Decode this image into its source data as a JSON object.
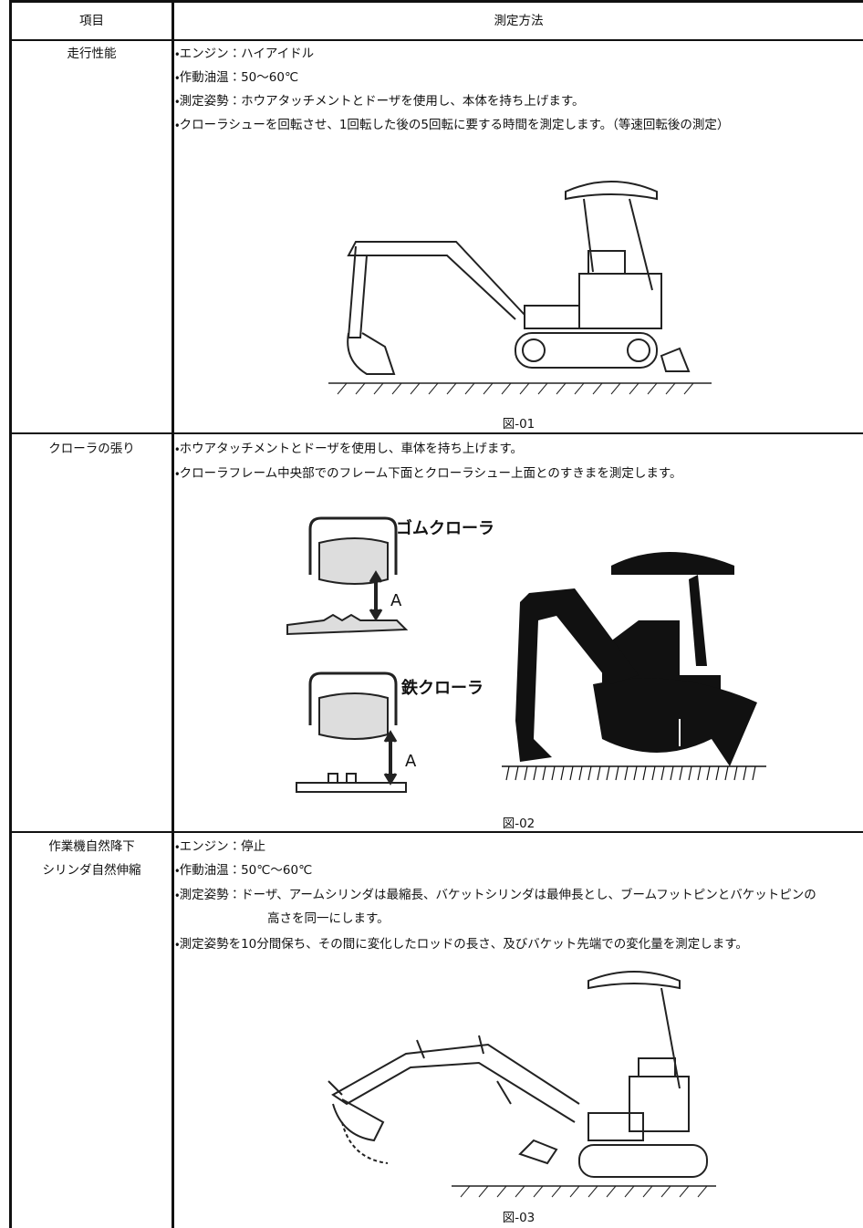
{
  "table": {
    "header": [
      "項目",
      "測定方法"
    ],
    "rows": [
      {
        "item": [
          "走行性能"
        ],
        "lines": [
          "・エンジン：ハイアイドル",
          "・作動油温：50～60℃",
          "・測定姿勢：ホウアタッチメントとドーザを使用し、本体を持ち上げます。",
          "・クローラシューを回転させ、1回転した後の5回転に要する時間を測定します。（等速回転後の測定）"
        ],
        "caption": "図-01"
      },
      {
        "item": [
          "クローラの張り"
        ],
        "lines": [
          "・ホウアタッチメントとドーザを使用し、車体を持ち上げます。",
          "・クローラフレーム中央部でのフレーム下面とクローラシュー上面とのすきまを測定します。"
        ],
        "figure_labels": [
          "ゴムクローラ",
          "A",
          "鉄クローラ",
          "A"
        ],
        "caption": "図-02"
      },
      {
        "item": [
          "作業機自然降下",
          "シリンダ自然伸縮"
        ],
        "lines": [
          "・エンジン：停止",
          "・作動油温：50℃～60℃",
          "・測定姿勢：ドーザ、アームシリンダは最縮長、バケットシリンダは最伸長とし、ブームフットピンとバケットピンの",
          "高さを同一にします。",
          "・測定姿勢を10分間保ち、その間に変化したロッドの長さ、及びバケット先端での変化量を測定します。"
        ],
        "caption": "図-03"
      }
    ]
  }
}
